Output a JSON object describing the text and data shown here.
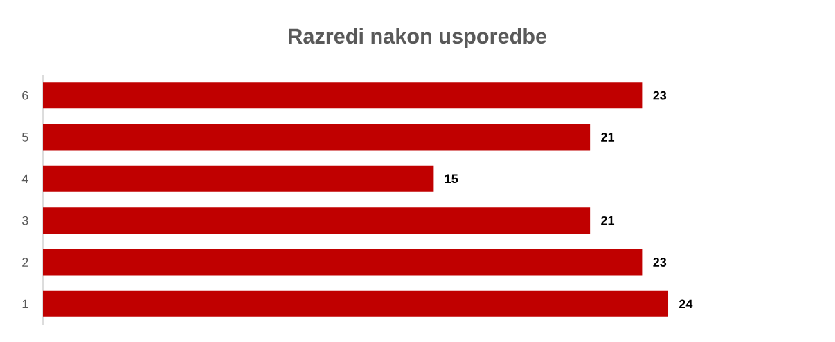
{
  "chart_data": {
    "type": "bar",
    "orientation": "horizontal",
    "title": "Razredi nakon usporedbe",
    "categories": [
      "6",
      "5",
      "4",
      "3",
      "2",
      "1"
    ],
    "values": [
      23,
      21,
      15,
      21,
      23,
      24
    ],
    "color": "#c00000",
    "data_labels": true
  }
}
